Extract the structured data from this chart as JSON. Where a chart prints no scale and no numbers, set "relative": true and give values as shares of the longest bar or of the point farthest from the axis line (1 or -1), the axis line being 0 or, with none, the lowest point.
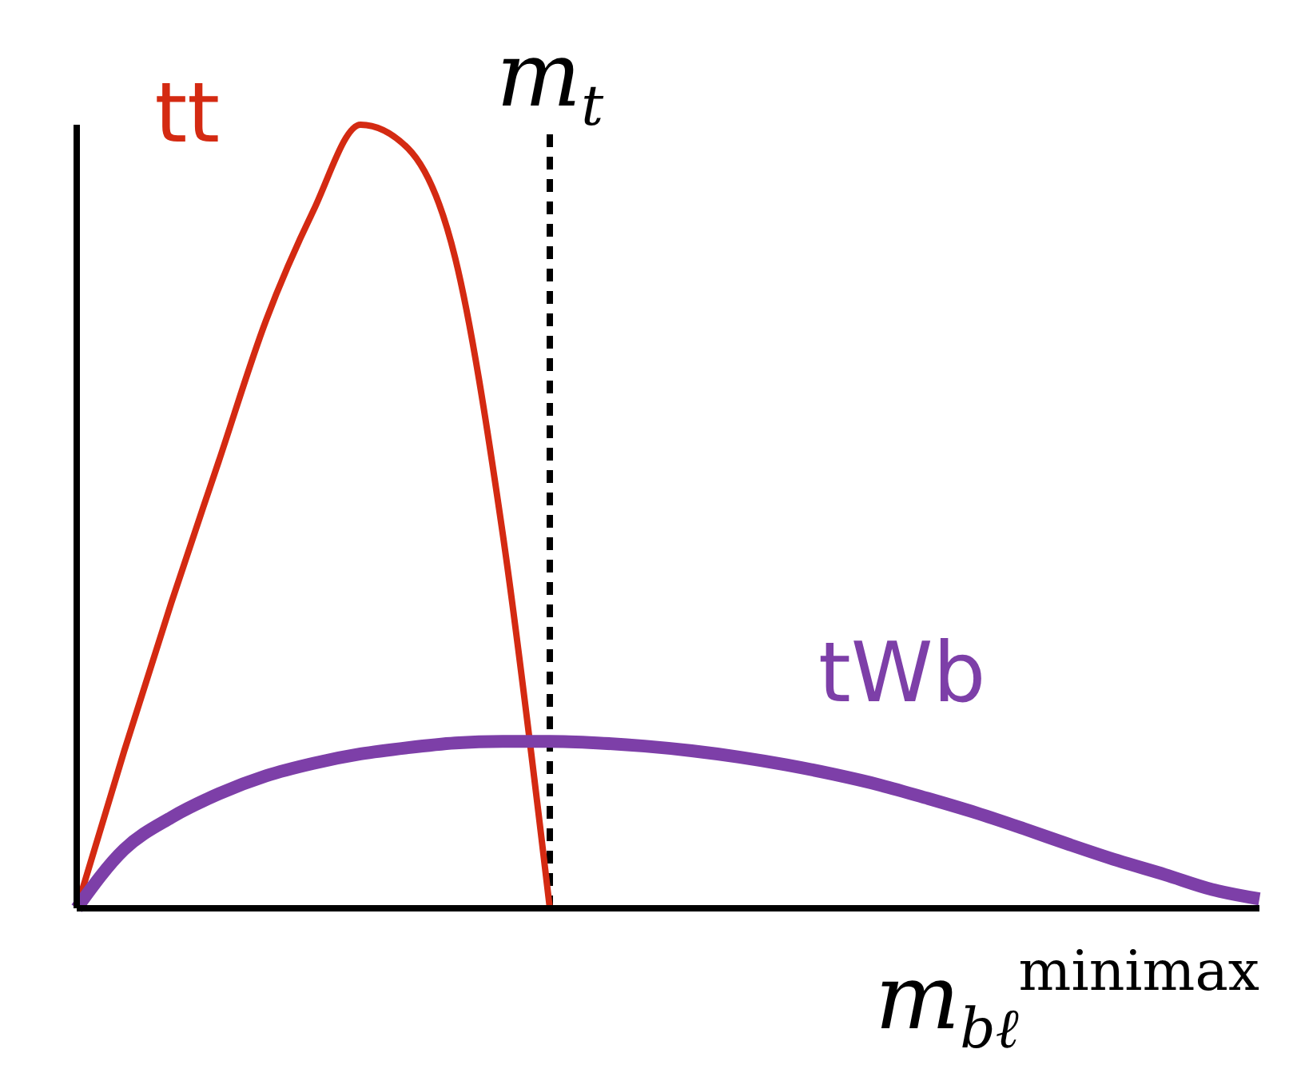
{
  "chart_data": {
    "type": "line",
    "relative": true,
    "xlabel": "m$_{bℓ}$$^{minimax}$",
    "categories": [
      null,
      null,
      null,
      null,
      null,
      null,
      null,
      null,
      null,
      null,
      null,
      null,
      null,
      null,
      null,
      null,
      null,
      null,
      null,
      null,
      null,
      null,
      null,
      null,
      null,
      null
    ],
    "series": [
      {
        "name": "tt",
        "color": "#d42a12",
        "values": [
          0,
          0.2,
          0.39,
          0.57,
          0.75,
          0.89,
          1,
          0.97,
          0.83,
          0.48,
          0,
          null,
          null,
          null,
          null,
          null,
          null,
          null,
          null,
          null,
          null,
          null,
          null,
          null,
          null,
          null
        ]
      },
      {
        "name": "tWb",
        "color": "#7d3fa8",
        "values": [
          0,
          0.075,
          0.116,
          0.146,
          0.169,
          0.185,
          0.197,
          0.205,
          0.211,
          0.213,
          0.213,
          0.211,
          0.207,
          0.201,
          0.193,
          0.183,
          0.171,
          0.157,
          0.14,
          0.122,
          0.102,
          0.081,
          0.061,
          0.043,
          0.024,
          0.012
        ]
      }
    ],
    "annotations": [
      "m$_{t}$"
    ],
    "grid": false,
    "marker": "none",
    "line_style": "solid"
  }
}
